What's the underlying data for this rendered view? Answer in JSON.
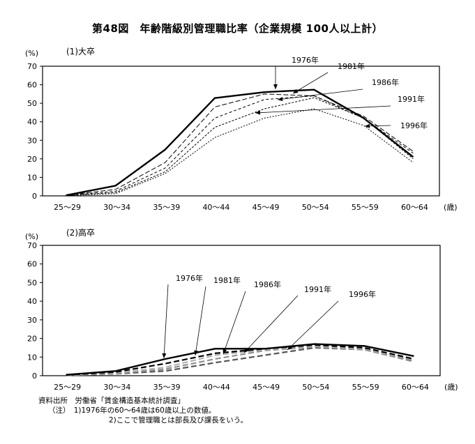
{
  "title": "第48図　年齢階級別管理職比率（企業規模 100人以上計）",
  "notes": {
    "source_label": "資料出所",
    "source_text": "労働省「賃金構造基本統計調査」",
    "note_label": "（注）",
    "note1": "1)1976年の60～64歳は60歳以上の数値。",
    "note2": "2)ここで管理職とは部長及び課長をいう。"
  },
  "chart_data": [
    {
      "type": "line",
      "title": "(1)大卒",
      "ylabel": "(%)",
      "xunit": "(歳)",
      "ylim": [
        0,
        70
      ],
      "yticks": [
        0,
        10,
        20,
        30,
        40,
        50,
        60,
        70
      ],
      "categories": [
        "25～29",
        "30～34",
        "35～39",
        "40～44",
        "45～49",
        "50～54",
        "55～59",
        "60～64"
      ],
      "series": [
        {
          "name": "1976年",
          "values": [
            0.3,
            5.5,
            25,
            52.8,
            56,
            57.3,
            42,
            21
          ],
          "color": "#000000",
          "style": "solid-bold"
        },
        {
          "name": "1981年",
          "values": [
            0.3,
            3.5,
            18,
            48,
            55,
            54,
            43,
            24
          ],
          "color": "#000000",
          "style": "dash-long"
        },
        {
          "name": "1986年",
          "values": [
            0.2,
            2.5,
            15,
            42,
            52,
            54,
            42,
            23
          ],
          "color": "#000000",
          "style": "dash"
        },
        {
          "name": "1991年",
          "values": [
            0.2,
            1.8,
            13,
            37,
            47,
            53,
            42,
            20
          ],
          "color": "#000000",
          "style": "dash-short"
        },
        {
          "name": "1996年",
          "values": [
            0.1,
            1.2,
            12,
            31.5,
            42,
            47,
            38,
            18
          ],
          "color": "#000000",
          "style": "dot-dash"
        }
      ]
    },
    {
      "type": "line",
      "title": "(2)高卒",
      "ylabel": "(%)",
      "xunit": "(歳)",
      "ylim": [
        0,
        70
      ],
      "yticks": [
        0,
        10,
        20,
        30,
        40,
        50,
        60,
        70
      ],
      "categories": [
        "25～29",
        "30～34",
        "35～39",
        "40～44",
        "45～49",
        "50～54",
        "55～59",
        "60～64"
      ],
      "series": [
        {
          "name": "1976年",
          "values": [
            0.5,
            2.5,
            9,
            14.5,
            14.5,
            17,
            16,
            10.5
          ],
          "color": "#000000",
          "style": "solid-bold"
        },
        {
          "name": "1981年",
          "values": [
            0.4,
            2,
            6.5,
            12,
            14.5,
            16.5,
            15,
            9
          ],
          "color": "#000000",
          "style": "dash-bold"
        },
        {
          "name": "1986年",
          "values": [
            0.3,
            1.5,
            4.5,
            11,
            14,
            16,
            14.5,
            8.5
          ],
          "color": "#b0b0b0",
          "style": "dash-bold"
        },
        {
          "name": "1991年",
          "values": [
            0.2,
            1.2,
            3.5,
            9,
            13.5,
            15.5,
            14,
            7.5
          ],
          "color": "#909090",
          "style": "dash-bold"
        },
        {
          "name": "1996年",
          "values": [
            0.1,
            1,
            2.5,
            7,
            11,
            15,
            14,
            8
          ],
          "color": "#555555",
          "style": "dash-bold"
        }
      ]
    }
  ]
}
